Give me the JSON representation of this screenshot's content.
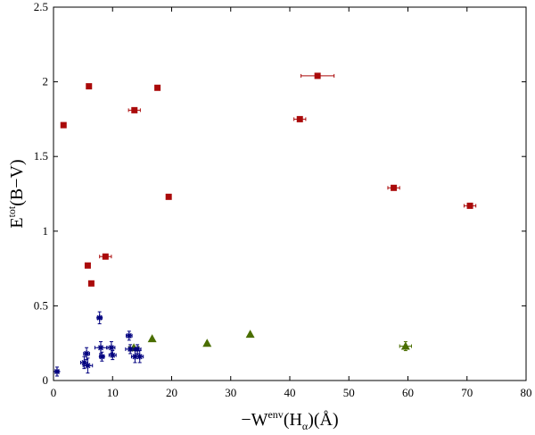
{
  "chart_data": {
    "type": "scatter",
    "xlabel": {
      "main": "−W",
      "sup": "env",
      "paren_open": "(H",
      "sub": "α",
      "rest": ")(Å)"
    },
    "ylabel": {
      "main": "E",
      "sup": "tot",
      "rest": "(B−V)"
    },
    "xlim": [
      0,
      80
    ],
    "ylim": [
      0,
      2.5
    ],
    "xticks": [
      0,
      10,
      20,
      30,
      40,
      50,
      60,
      70,
      80
    ],
    "yticks": [
      0,
      0.5,
      1,
      1.5,
      2,
      2.5
    ],
    "xtick_labels": [
      "0",
      "10",
      "20",
      "30",
      "40",
      "50",
      "60",
      "70",
      "80"
    ],
    "ytick_labels": [
      "0",
      "0.5",
      "1",
      "1.5",
      "2",
      "2.5"
    ],
    "grid": false,
    "legend": "none",
    "series": [
      {
        "marker": "square",
        "color": "#aa0a0a",
        "points": [
          {
            "x": 1.7,
            "y": 1.71,
            "xerr": 0.3,
            "yerr": 0.0
          },
          {
            "x": 6.0,
            "y": 1.97,
            "xerr": 0.3,
            "yerr": 0.0
          },
          {
            "x": 5.8,
            "y": 0.77,
            "xerr": 0.3,
            "yerr": 0.0
          },
          {
            "x": 6.4,
            "y": 0.65,
            "xerr": 0.3,
            "yerr": 0.0
          },
          {
            "x": 8.8,
            "y": 0.83,
            "xerr": 1.0,
            "yerr": 0.0
          },
          {
            "x": 13.7,
            "y": 1.81,
            "xerr": 1.0,
            "yerr": 0.0
          },
          {
            "x": 17.6,
            "y": 1.96,
            "xerr": 0.3,
            "yerr": 0.0
          },
          {
            "x": 19.5,
            "y": 1.23,
            "xerr": 0.3,
            "yerr": 0.0
          },
          {
            "x": 41.7,
            "y": 1.75,
            "xerr": 1.0,
            "yerr": 0.0
          },
          {
            "x": 44.7,
            "y": 2.04,
            "xerr": 2.8,
            "yerr": 0.0
          },
          {
            "x": 57.6,
            "y": 1.29,
            "xerr": 1.0,
            "yerr": 0.0
          },
          {
            "x": 70.5,
            "y": 1.17,
            "xerr": 1.0,
            "yerr": 0.0
          }
        ]
      },
      {
        "marker": "triangle",
        "color": "#4a6e00",
        "points": [
          {
            "x": 13.6,
            "y": 0.22,
            "xerr": 0.8,
            "yerr": 0.0
          },
          {
            "x": 16.7,
            "y": 0.28,
            "xerr": 0.0,
            "yerr": 0.0
          },
          {
            "x": 26.0,
            "y": 0.25,
            "xerr": 0.0,
            "yerr": 0.0
          },
          {
            "x": 33.3,
            "y": 0.31,
            "xerr": 0.0,
            "yerr": 0.0
          },
          {
            "x": 59.6,
            "y": 0.23,
            "xerr": 1.0,
            "yerr": 0.03
          }
        ]
      },
      {
        "marker": "star",
        "color": "#00007f",
        "points": [
          {
            "x": 0.6,
            "y": 0.06,
            "xerr": 0.3,
            "yerr": 0.03
          },
          {
            "x": 5.2,
            "y": 0.12,
            "xerr": 0.6,
            "yerr": 0.04
          },
          {
            "x": 5.6,
            "y": 0.18,
            "xerr": 0.5,
            "yerr": 0.04
          },
          {
            "x": 5.8,
            "y": 0.1,
            "xerr": 0.8,
            "yerr": 0.05
          },
          {
            "x": 7.8,
            "y": 0.42,
            "xerr": 0.4,
            "yerr": 0.04
          },
          {
            "x": 8.0,
            "y": 0.22,
            "xerr": 1.0,
            "yerr": 0.04
          },
          {
            "x": 8.2,
            "y": 0.16,
            "xerr": 0.4,
            "yerr": 0.03
          },
          {
            "x": 9.8,
            "y": 0.22,
            "xerr": 0.6,
            "yerr": 0.04
          },
          {
            "x": 10.0,
            "y": 0.17,
            "xerr": 0.6,
            "yerr": 0.03
          },
          {
            "x": 12.8,
            "y": 0.3,
            "xerr": 0.5,
            "yerr": 0.03
          },
          {
            "x": 13.0,
            "y": 0.21,
            "xerr": 0.8,
            "yerr": 0.03
          },
          {
            "x": 13.8,
            "y": 0.16,
            "xerr": 0.6,
            "yerr": 0.04
          },
          {
            "x": 14.2,
            "y": 0.21,
            "xerr": 0.6,
            "yerr": 0.03
          },
          {
            "x": 14.6,
            "y": 0.16,
            "xerr": 0.6,
            "yerr": 0.04
          }
        ]
      }
    ]
  }
}
